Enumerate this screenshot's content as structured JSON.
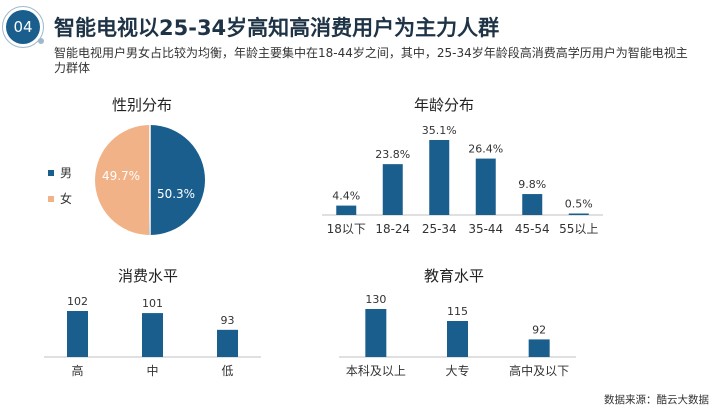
{
  "header": {
    "badge": "04",
    "title": "智能电视以25-34岁高知高消费用户为主力人群",
    "subtitle": "智能电视用户男女占比较为均衡，年龄主要集中在18-44岁之间，其中，25-34岁年龄段高消费高学历用户为智能电视主力群体"
  },
  "source": "数据来源：酷云大数据",
  "colors": {
    "primary": "#1a5e8e",
    "female": "#f2b287",
    "axis": "#c0c0c0"
  },
  "chart_data": [
    {
      "id": "gender",
      "type": "pie",
      "title": "性别分布",
      "labels": [
        "男",
        "女"
      ],
      "values": [
        50.3,
        49.7
      ],
      "data_labels": [
        "50.3%",
        "49.7%"
      ],
      "legend": "left"
    },
    {
      "id": "age",
      "type": "bar",
      "title": "年龄分布",
      "categories": [
        "18以下",
        "18-24",
        "25-34",
        "35-44",
        "45-54",
        "55以上"
      ],
      "values": [
        4.4,
        23.8,
        35.1,
        26.4,
        9.8,
        0.5
      ],
      "data_labels": [
        "4.4%",
        "23.8%",
        "35.1%",
        "26.4%",
        "9.8%",
        "0.5%"
      ],
      "ylim": [
        0,
        35.1
      ]
    },
    {
      "id": "consumption",
      "type": "bar",
      "title": "消费水平",
      "categories": [
        "高",
        "中",
        "低"
      ],
      "values": [
        102,
        101,
        93
      ],
      "data_labels": [
        "102",
        "101",
        "93"
      ],
      "ylim": [
        80,
        102
      ]
    },
    {
      "id": "education",
      "type": "bar",
      "title": "教育水平",
      "categories": [
        "本科及以上",
        "大专",
        "高中及以下"
      ],
      "values": [
        130,
        115,
        92
      ],
      "data_labels": [
        "130",
        "115",
        "92"
      ],
      "ylim": [
        70,
        130
      ]
    }
  ]
}
